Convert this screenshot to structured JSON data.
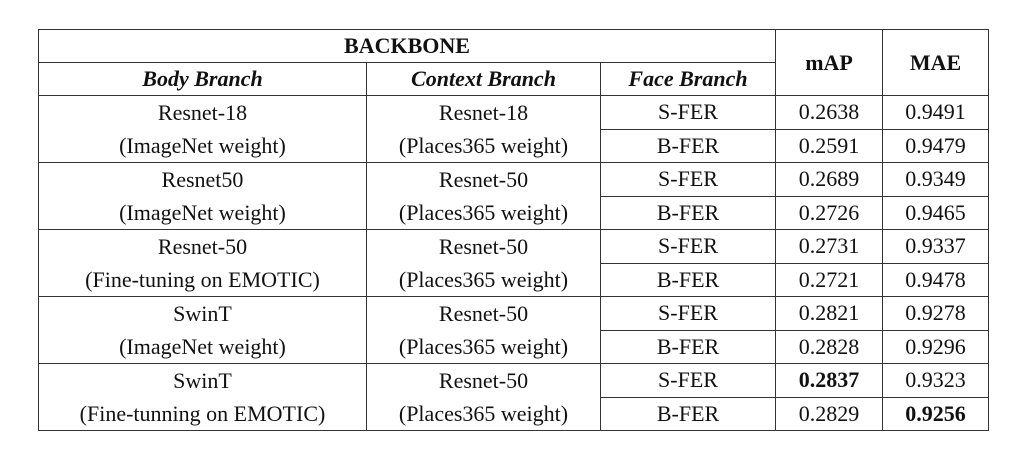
{
  "header": {
    "backbone": "BACKBONE",
    "body_branch": "Body Branch",
    "context_branch": "Context Branch",
    "face_branch": "Face Branch",
    "map": "mAP",
    "mae": "MAE"
  },
  "groups": [
    {
      "body": [
        "Resnet-18",
        "(ImageNet weight)"
      ],
      "context": [
        "Resnet-18",
        "(Places365 weight)"
      ],
      "rows": [
        {
          "face": "S-FER",
          "map": "0.2638",
          "mae": "0.9491"
        },
        {
          "face": "B-FER",
          "map": "0.2591",
          "mae": "0.9479"
        }
      ]
    },
    {
      "body": [
        "Resnet50",
        "(ImageNet weight)"
      ],
      "context": [
        "Resnet-50",
        "(Places365 weight)"
      ],
      "rows": [
        {
          "face": "S-FER",
          "map": "0.2689",
          "mae": "0.9349"
        },
        {
          "face": "B-FER",
          "map": "0.2726",
          "mae": "0.9465"
        }
      ]
    },
    {
      "body": [
        "Resnet-50",
        "(Fine-tuning on EMOTIC)"
      ],
      "context": [
        "Resnet-50",
        "(Places365 weight)"
      ],
      "rows": [
        {
          "face": "S-FER",
          "map": "0.2731",
          "mae": "0.9337"
        },
        {
          "face": "B-FER",
          "map": "0.2721",
          "mae": "0.9478"
        }
      ]
    },
    {
      "body": [
        "SwinT",
        "(ImageNet weight)"
      ],
      "context": [
        "Resnet-50",
        "(Places365 weight)"
      ],
      "rows": [
        {
          "face": "S-FER",
          "map": "0.2821",
          "mae": "0.9278"
        },
        {
          "face": "B-FER",
          "map": "0.2828",
          "mae": "0.9296"
        }
      ]
    },
    {
      "body": [
        "SwinT",
        "(Fine-tunning on EMOTIC)"
      ],
      "context": [
        "Resnet-50",
        "(Places365 weight)"
      ],
      "rows": [
        {
          "face": "S-FER",
          "map": "0.2837",
          "mae": "0.9323"
        },
        {
          "face": "B-FER",
          "map": "0.2829",
          "mae": "0.9256"
        }
      ]
    }
  ],
  "bold_cells": [
    "groups.4.rows.0.map",
    "groups.4.rows.1.mae"
  ]
}
